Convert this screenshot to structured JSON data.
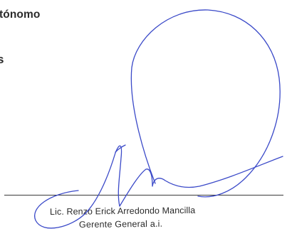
{
  "document": {
    "heading_fragment": "tónomo",
    "margin_glyph": "s"
  },
  "signature_block": {
    "name": "Lic. Renzo Erick Arredondo Mancilla",
    "title": "Gerente General a.i.",
    "ink_color": "#3a49c8"
  }
}
